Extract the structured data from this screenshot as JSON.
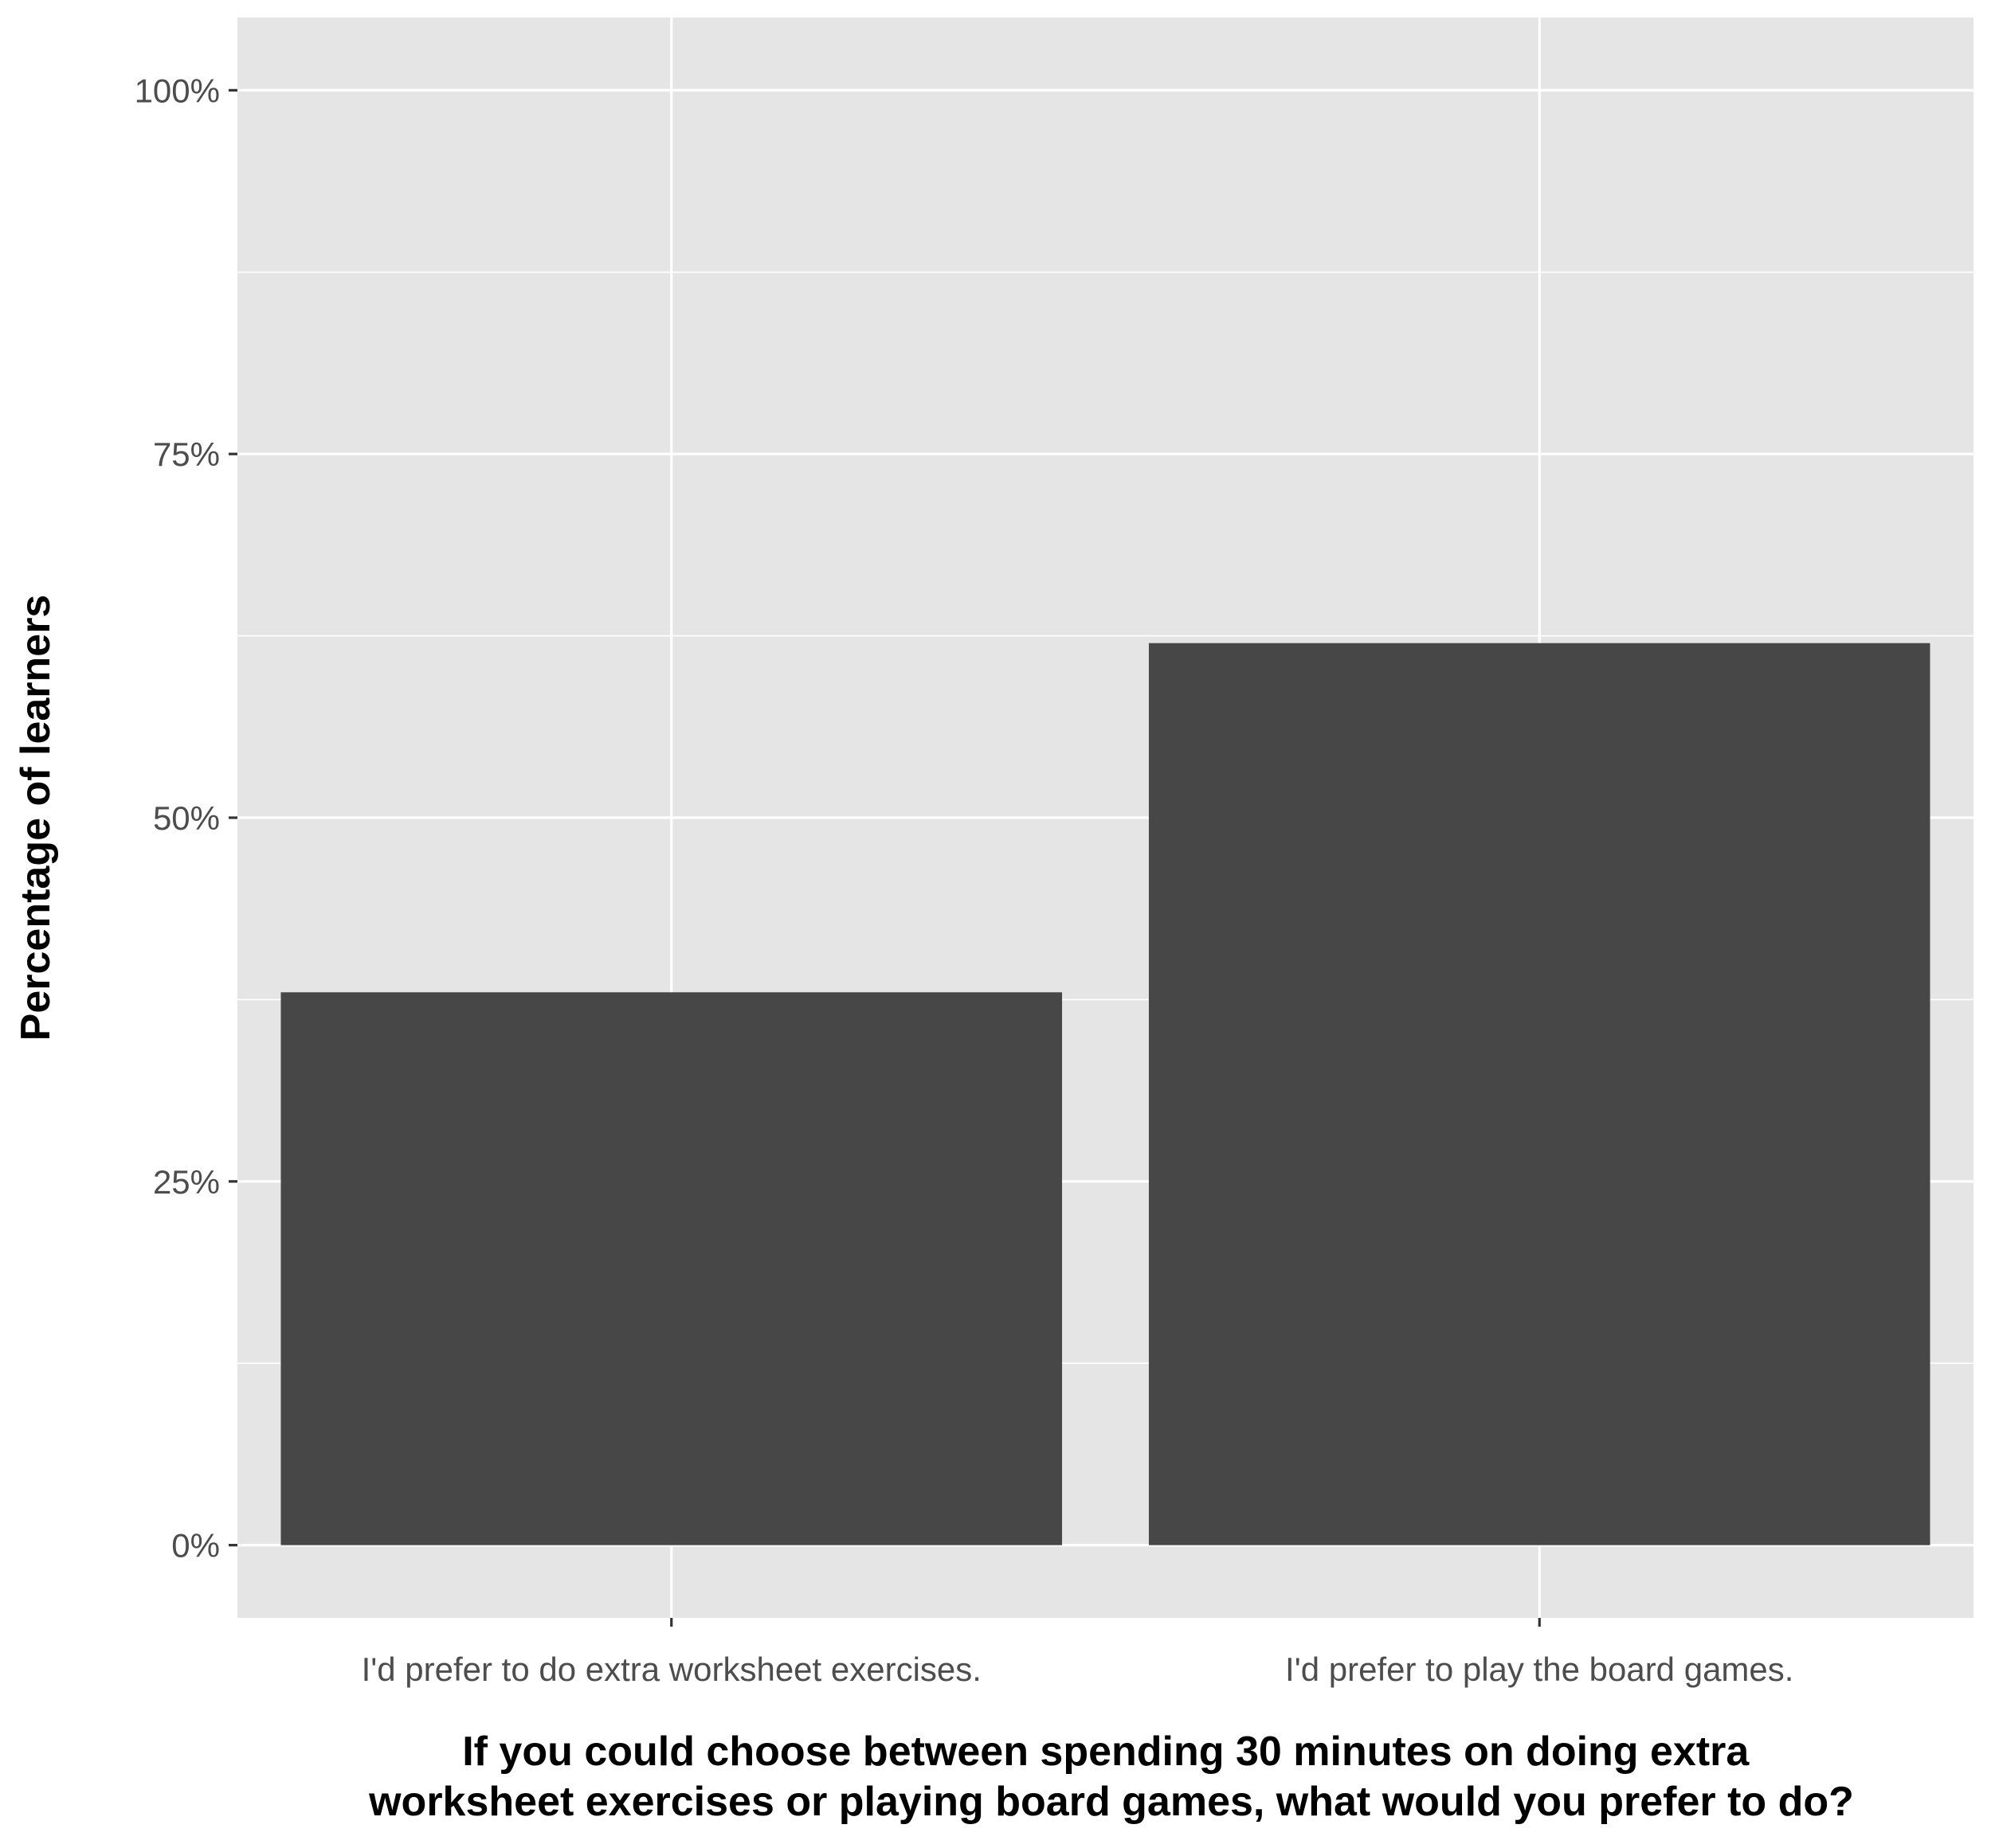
{
  "chart_data": {
    "type": "bar",
    "title": "",
    "categories": [
      "I'd prefer to do extra worksheet exercises.",
      "I'd prefer to play the board games."
    ],
    "values": [
      38,
      62
    ],
    "value_unit": "%",
    "xlabel": "If you could choose between spending 30 minutes on doing extra worksheet exercises or playing board games, what would you prefer to do?",
    "xlabel_lines": [
      "If you could choose between spending 30 minutes on doing extra",
      "worksheet exercises or playing board games, what would you prefer to do?"
    ],
    "ylabel": "Percentage of learners",
    "ylim": [
      -5,
      105
    ],
    "y_ticks": [
      0,
      25,
      50,
      75,
      100
    ],
    "y_tick_labels": [
      "0%",
      "25%",
      "50%",
      "75%",
      "100%"
    ],
    "y_minor_ticks": [
      12.5,
      37.5,
      62.5,
      87.5
    ],
    "grid": true,
    "legend": "none",
    "colors": {
      "panel_background": "#e5e5e5",
      "grid_line": "#ffffff",
      "bar_fill": "#474747",
      "tick_text": "#4d4d4d",
      "tick_mark": "#333333",
      "axis_title": "#000000"
    }
  }
}
